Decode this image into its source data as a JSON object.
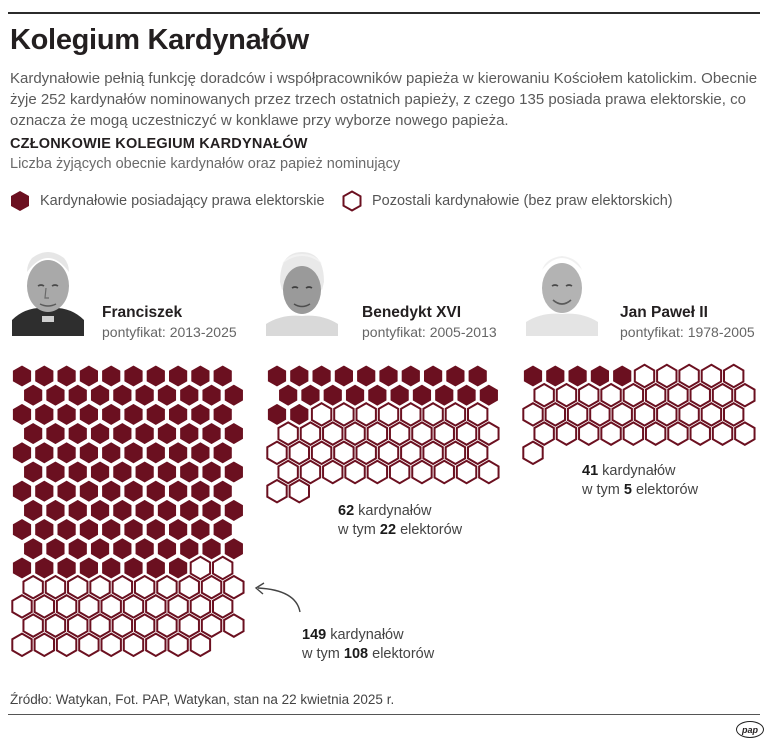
{
  "title": "Kolegium Kardynałów",
  "intro": "Kardynałowie pełnią funkcję doradców i współpracowników papieża w kierowaniu Kościołem katolickim. Obecnie żyje 252 kardynałów nominowanych przez trzech ostatnich papieży, z czego 135 posiada prawa elektorskie, co oznacza że mogą uczestniczyć w konklawe przy wyborze nowego papieża.",
  "section": {
    "title": "CZŁONKOWIE KOLEGIUM KARDYNAŁÓW",
    "subtitle": "Liczba żyjących obecnie kardynałów oraz papież nominujący"
  },
  "legend": {
    "electors": "Kardynałowie posiadający prawa elektorskie",
    "others": "Pozostali kardynałowie (bez praw elektorskich)"
  },
  "popes": [
    {
      "name": "Franciszek",
      "term": "pontyfikat: 2013-2025",
      "total": "149",
      "total_suffix": "kardynałów",
      "electors_prefix": "w tym",
      "electors": "108",
      "electors_suffix": "elektorów"
    },
    {
      "name": "Benedykt XVI",
      "term": "pontyfikat: 2005-2013",
      "total": "62",
      "total_suffix": "kardynałów",
      "electors_prefix": "w tym",
      "electors": "22",
      "electors_suffix": "elektorów"
    },
    {
      "name": "Jan Paweł II",
      "term": "pontyfikat: 1978-2005",
      "total": "41",
      "total_suffix": "kardynałów",
      "electors_prefix": "w tym",
      "electors": "5",
      "electors_suffix": "elektorów"
    }
  ],
  "source": "Źródło: Watykan, Fot. PAP, Watykan, stan na 22 kwietnia 2025 r.",
  "logo": "pap",
  "colors": {
    "elector": "#6b1020",
    "other_stroke": "#6b1020",
    "other_fill": "#ffffff"
  },
  "chart_data": {
    "type": "bar",
    "categories": [
      "Franciszek",
      "Benedykt XVI",
      "Jan Paweł II"
    ],
    "series": [
      {
        "name": "Kardynałowie posiadający prawa elektorskie",
        "values": [
          108,
          22,
          5
        ]
      },
      {
        "name": "Pozostali kardynałowie (bez praw elektorskich)",
        "values": [
          41,
          40,
          36
        ]
      }
    ],
    "totals": [
      149,
      62,
      41
    ],
    "unit": "one hexagon per cardinal"
  }
}
